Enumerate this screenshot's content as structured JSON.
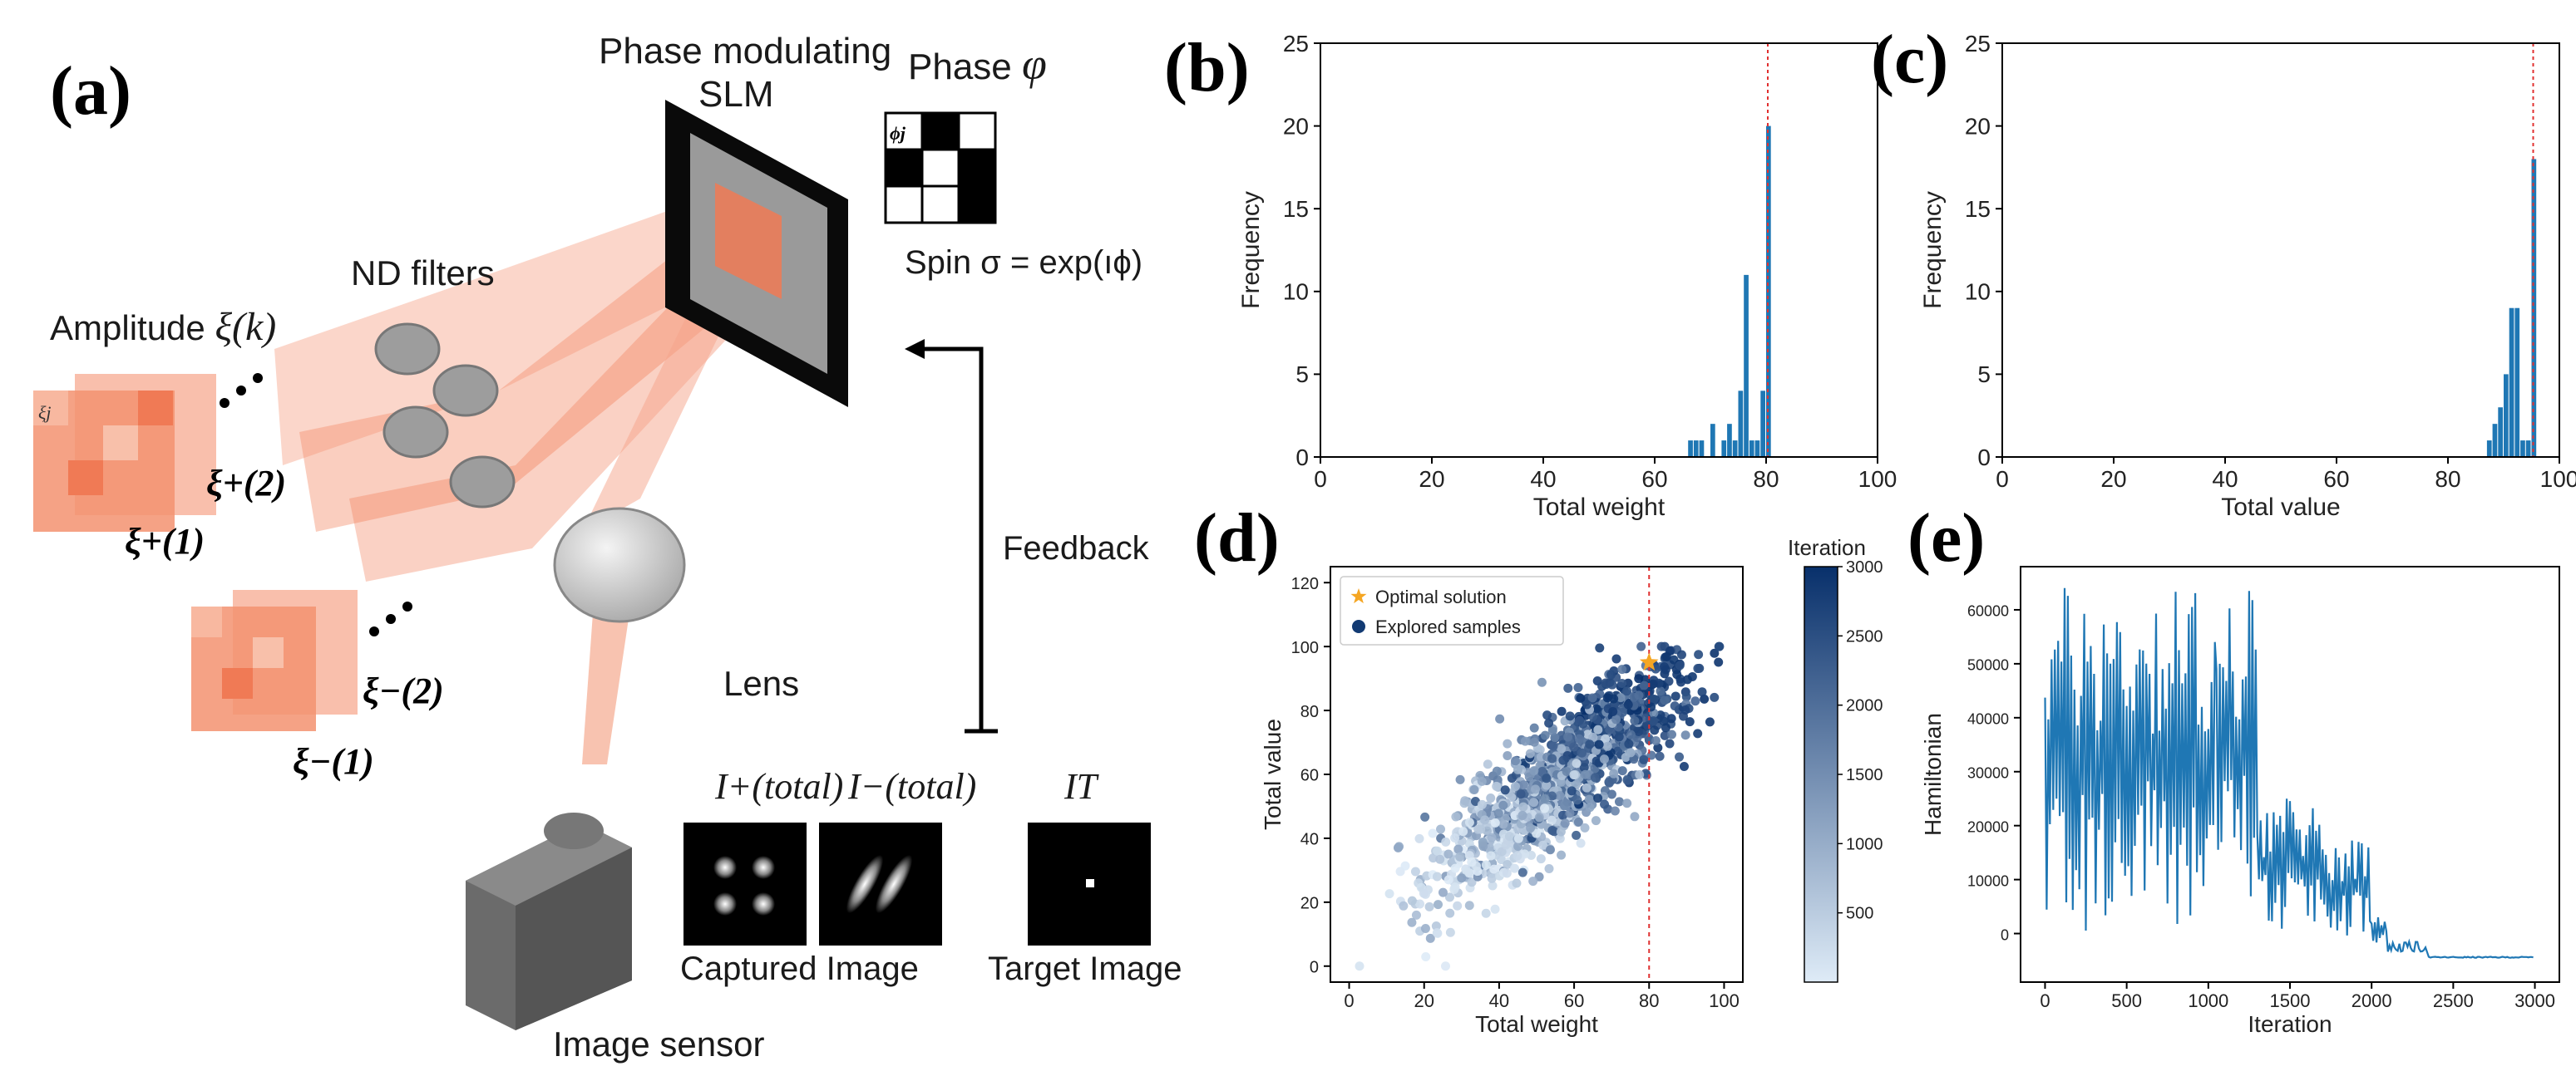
{
  "labels": {
    "a": "(a)",
    "b": "(b)",
    "c": "(c)",
    "d": "(d)",
    "e": "(e)"
  },
  "schematic": {
    "slm": "Phase modulating SLM",
    "slm_line1": "Phase modulating",
    "slm_line2": "SLM",
    "phase": "Phase",
    "phase_symbol": "φ",
    "phi_cell": "ϕj",
    "spin": "Spin σ = exp(ıϕ)",
    "nd_filters": "ND filters",
    "amplitude": "Amplitude",
    "amplitude_symbol": "ξ(k)",
    "xi_j": "ξj",
    "xi_p2": "ξ+(2)",
    "xi_p1": "ξ+(1)",
    "xi_m2": "ξ−(2)",
    "xi_m1": "ξ−(1)",
    "feedback": "Feedback",
    "lens": "Lens",
    "i_plus": "I+(total)",
    "i_minus": "I−(total)",
    "i_t": "IT",
    "captured": "Captured Image",
    "target": "Target Image",
    "sensor": "Image sensor"
  },
  "colors": {
    "bar": "#1f77b4",
    "line": "#1f77b4",
    "optimal": "#f5a623",
    "threshold": "#e03030",
    "laser": "#f0724f"
  },
  "chart_data": [
    {
      "id": "b",
      "type": "bar",
      "title": "",
      "xlabel": "Total weight",
      "ylabel": "Frequency",
      "xlim": [
        0,
        100
      ],
      "ylim": [
        0,
        25
      ],
      "xticks": [
        0,
        20,
        40,
        60,
        80,
        100
      ],
      "yticks": [
        0,
        5,
        10,
        15,
        20,
        25
      ],
      "bin_width": 1,
      "bins": [
        66,
        67,
        68,
        70,
        72,
        73,
        74,
        75,
        76,
        77,
        78,
        79,
        80
      ],
      "values": [
        1,
        1,
        1,
        2,
        1,
        2,
        1,
        4,
        11,
        1,
        1,
        4,
        20
      ],
      "threshold": 80
    },
    {
      "id": "c",
      "type": "bar",
      "title": "",
      "xlabel": "Total value",
      "ylabel": "Frequency",
      "xlim": [
        0,
        100
      ],
      "ylim": [
        0,
        25
      ],
      "xticks": [
        0,
        20,
        40,
        60,
        80,
        100
      ],
      "yticks": [
        0,
        5,
        10,
        15,
        20,
        25
      ],
      "bin_width": 1,
      "bins": [
        87,
        88,
        89,
        90,
        91,
        92,
        93,
        94,
        95
      ],
      "values": [
        1,
        2,
        3,
        5,
        9,
        9,
        1,
        1,
        18
      ],
      "threshold": 95
    },
    {
      "id": "d",
      "type": "scatter",
      "title": "",
      "xlabel": "Total weight",
      "ylabel": "Total value",
      "xlim": [
        -5,
        105
      ],
      "ylim": [
        -5,
        125
      ],
      "xticks": [
        0,
        20,
        40,
        60,
        80,
        100
      ],
      "yticks": [
        0,
        20,
        40,
        60,
        80,
        100,
        120
      ],
      "legend": [
        "Optimal solution",
        "Explored samples"
      ],
      "colorbar_label": "Iteration",
      "colorbar_range": [
        0,
        3000
      ],
      "colorbar_ticks": [
        500,
        1000,
        1500,
        2000,
        2500,
        3000
      ],
      "threshold": 80,
      "optimal": {
        "x": 80,
        "y": 95
      },
      "n_samples": 1200
    },
    {
      "id": "e",
      "type": "line",
      "title": "",
      "xlabel": "Iteration",
      "ylabel": "Hamiltonian",
      "xlim": [
        -150,
        3150
      ],
      "ylim": [
        -9000,
        68000
      ],
      "xticks": [
        0,
        500,
        1000,
        1500,
        2000,
        2500,
        3000
      ],
      "yticks": [
        0,
        10000,
        20000,
        30000,
        40000,
        50000,
        60000
      ],
      "phases": [
        {
          "from": 0,
          "to": 1050,
          "low": 0,
          "high": 65000
        },
        {
          "from": 1050,
          "to": 1300,
          "low": 5000,
          "high": 64000
        },
        {
          "from": 1300,
          "to": 1700,
          "low": 500,
          "high": 25000
        },
        {
          "from": 1700,
          "to": 2000,
          "low": -500,
          "high": 18000
        },
        {
          "from": 2000,
          "to": 2100,
          "low": -2000,
          "high": 4000
        },
        {
          "from": 2100,
          "to": 2350,
          "low": -3500,
          "high": -1500
        },
        {
          "from": 2350,
          "to": 3000,
          "low": -4500,
          "high": -4300
        }
      ]
    }
  ]
}
